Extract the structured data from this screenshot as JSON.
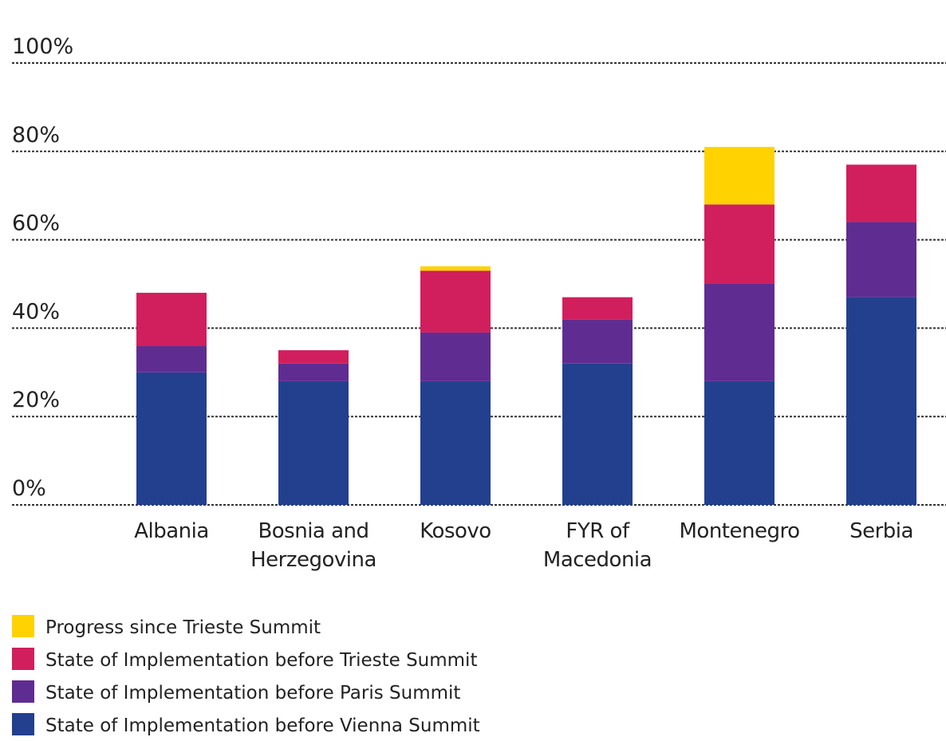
{
  "chart_data": {
    "type": "stacked_bar",
    "categories": [
      "Albania",
      "Bosnia and Herzegovina",
      "Kosovo",
      "FYR of Macedonia",
      "Montenegro",
      "Serbia"
    ],
    "series": [
      {
        "name": "State of Implementation before Vienna Summit",
        "color": "#23408e",
        "values": [
          30,
          28,
          28,
          32,
          28,
          47
        ]
      },
      {
        "name": "State of Implementation before Paris Summit",
        "color": "#5f2d91",
        "values": [
          6,
          4,
          11,
          10,
          22,
          17
        ]
      },
      {
        "name": "State of Implementation before Trieste Summit",
        "color": "#d01f5c",
        "values": [
          12,
          3,
          14,
          5,
          18,
          13
        ]
      },
      {
        "name": "Progress since Trieste Summit",
        "color": "#ffd200",
        "values": [
          0,
          0,
          1,
          0,
          13,
          0
        ]
      }
    ],
    "ylim": [
      0,
      100
    ],
    "yticks": [
      {
        "value": 0,
        "label": "0%"
      },
      {
        "value": 20,
        "label": "20%"
      },
      {
        "value": 40,
        "label": "40%"
      },
      {
        "value": 60,
        "label": "60%"
      },
      {
        "value": 80,
        "label": "80%"
      },
      {
        "value": 100,
        "label": "100%"
      }
    ],
    "grid": true
  }
}
